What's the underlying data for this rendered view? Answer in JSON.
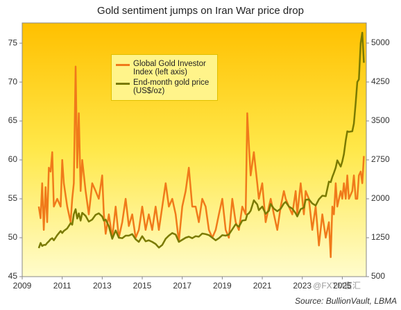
{
  "chart_data": {
    "type": "line",
    "title": "Gold sentiment jumps on Iran War price drop",
    "source": "Source: BullionVault, LBMA",
    "watermark": "@FXTM富汇",
    "x": [
      2009.83,
      2009.92,
      2010.0,
      2010.08,
      2010.17,
      2010.25,
      2010.33,
      2010.42,
      2010.5,
      2010.58,
      2010.75,
      2010.92,
      2011.0,
      2011.08,
      2011.25,
      2011.42,
      2011.5,
      2011.58,
      2011.67,
      2011.75,
      2011.83,
      2011.92,
      2012.0,
      2012.17,
      2012.33,
      2012.5,
      2012.67,
      2012.83,
      2013.0,
      2013.08,
      2013.17,
      2013.33,
      2013.5,
      2013.67,
      2013.83,
      2014.0,
      2014.17,
      2014.33,
      2014.5,
      2014.67,
      2014.83,
      2015.0,
      2015.17,
      2015.33,
      2015.5,
      2015.67,
      2015.83,
      2016.0,
      2016.17,
      2016.33,
      2016.5,
      2016.67,
      2016.83,
      2017.0,
      2017.17,
      2017.33,
      2017.5,
      2017.67,
      2017.83,
      2018.0,
      2018.17,
      2018.33,
      2018.5,
      2018.67,
      2018.83,
      2019.0,
      2019.17,
      2019.33,
      2019.5,
      2019.67,
      2019.83,
      2020.0,
      2020.17,
      2020.25,
      2020.33,
      2020.42,
      2020.58,
      2020.75,
      2020.83,
      2021.0,
      2021.17,
      2021.33,
      2021.42,
      2021.58,
      2021.75,
      2021.92,
      2022.08,
      2022.17,
      2022.33,
      2022.5,
      2022.67,
      2022.75,
      2022.92,
      2023.08,
      2023.17,
      2023.33,
      2023.5,
      2023.67,
      2023.83,
      2024.0,
      2024.17,
      2024.33,
      2024.42,
      2024.5,
      2024.58,
      2024.67,
      2024.75,
      2024.92,
      2025.0,
      2025.08,
      2025.17,
      2025.25,
      2025.33,
      2025.5,
      2025.58,
      2025.67,
      2025.75,
      2025.83,
      2025.92,
      2026.0,
      2026.08
    ],
    "series": [
      {
        "name": "Global Gold Investor Index (left axis)",
        "color": "#f07a1a",
        "axis": "y",
        "values": [
          54,
          52.5,
          57,
          51,
          56.5,
          52,
          59,
          58.5,
          61,
          54,
          55,
          54,
          60,
          57,
          54,
          52,
          55,
          57,
          72,
          59,
          66,
          56,
          60,
          56,
          53,
          57,
          56,
          55,
          58,
          53,
          50.5,
          53,
          50,
          54,
          50,
          52,
          55,
          51.5,
          53,
          50,
          51,
          54,
          51,
          53,
          51,
          54,
          51,
          54,
          57,
          54,
          55,
          53,
          49.5,
          54,
          56,
          59,
          54,
          54,
          52,
          55,
          54,
          51,
          50,
          51,
          53,
          55,
          51,
          50,
          55,
          52,
          51,
          54,
          53,
          66,
          62,
          58,
          61,
          57,
          55,
          57,
          52,
          54,
          55,
          53,
          51,
          54,
          56,
          55,
          54,
          53,
          56,
          53,
          57,
          53,
          56,
          55,
          51,
          54,
          49,
          53,
          50,
          52,
          47.5,
          54,
          53,
          57,
          54,
          56,
          55,
          57,
          55,
          58,
          55,
          56,
          58,
          55,
          55,
          58,
          58.5,
          57,
          60.5
        ]
      },
      {
        "name": "End-month gold price (US$/oz)",
        "color": "#7a7a00",
        "axis": "y2",
        "values": [
          1050,
          1150,
          1090,
          1110,
          1110,
          1150,
          1180,
          1220,
          1240,
          1200,
          1300,
          1380,
          1340,
          1380,
          1430,
          1530,
          1500,
          1700,
          1800,
          1620,
          1720,
          1580,
          1730,
          1670,
          1560,
          1600,
          1690,
          1720,
          1660,
          1580,
          1600,
          1470,
          1230,
          1390,
          1250,
          1240,
          1290,
          1290,
          1320,
          1220,
          1170,
          1280,
          1180,
          1200,
          1170,
          1130,
          1060,
          1110,
          1230,
          1290,
          1340,
          1310,
          1170,
          1210,
          1250,
          1270,
          1240,
          1280,
          1270,
          1330,
          1320,
          1300,
          1250,
          1200,
          1240,
          1300,
          1290,
          1310,
          1410,
          1510,
          1460,
          1580,
          1590,
          1700,
          1720,
          1770,
          1970,
          1890,
          1780,
          1850,
          1710,
          1770,
          1900,
          1810,
          1760,
          1810,
          1910,
          1940,
          1850,
          1810,
          1720,
          1660,
          1800,
          1830,
          1980,
          1990,
          1910,
          1870,
          1990,
          2060,
          2050,
          2330,
          2320,
          2420,
          2500,
          2600,
          2740,
          2620,
          2720,
          2860,
          3120,
          3300,
          3290,
          3300,
          3450,
          3850,
          4250,
          4300,
          5000,
          5200,
          4620
        ]
      }
    ],
    "xlim": [
      2009,
      2026.2
    ],
    "xticks": [
      2009,
      2011,
      2013,
      2015,
      2017,
      2019,
      2021,
      2023,
      2025
    ],
    "ylim": [
      45,
      77.6
    ],
    "yticks": [
      45,
      50,
      55,
      60,
      65,
      70,
      75
    ],
    "y2lim": [
      500,
      5388
    ],
    "y2ticks": [
      500,
      1250,
      2000,
      2750,
      3500,
      4250,
      5000
    ]
  }
}
